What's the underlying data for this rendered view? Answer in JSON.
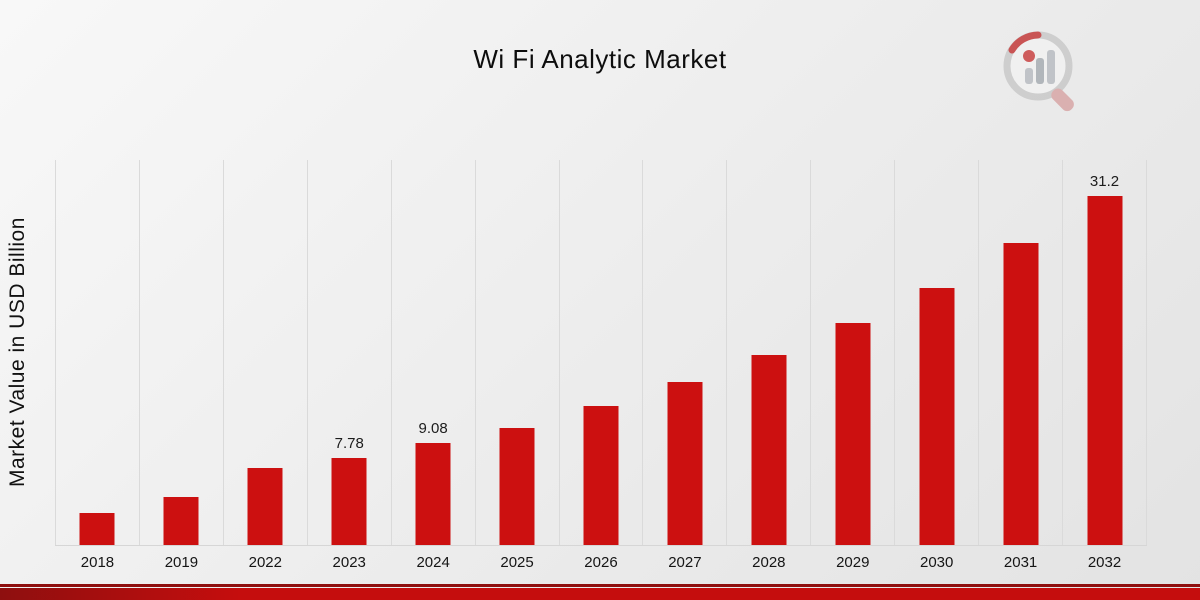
{
  "title": "Wi Fi Analytic Market",
  "y_axis_label": "Market Value in USD Billion",
  "logo": "bar-chart-magnifier-logo",
  "colors": {
    "bar": "#cc1010",
    "accent_line": "#8e0f0f",
    "accent_band": "#c50d0d",
    "gridline": "#dadada",
    "title_text": "#0d0d0d"
  },
  "chart_data": {
    "type": "bar",
    "title": "Wi Fi Analytic Market",
    "xlabel": "",
    "ylabel": "Market Value in USD Billion",
    "categories": [
      "2018",
      "2019",
      "2022",
      "2023",
      "2024",
      "2025",
      "2026",
      "2027",
      "2028",
      "2029",
      "2030",
      "2031",
      "2032"
    ],
    "values": [
      2.9,
      4.3,
      6.9,
      7.78,
      9.08,
      10.5,
      12.4,
      14.6,
      17.0,
      19.8,
      23.0,
      27.0,
      31.2
    ],
    "data_labels": [
      "",
      "",
      "",
      "7.78",
      "9.08",
      "",
      "",
      "",
      "",
      "",
      "",
      "",
      "31.2"
    ],
    "bar_color": "#cc1010",
    "ylim": [
      0,
      34.4
    ],
    "grid": "vertical-only",
    "legend": false
  }
}
